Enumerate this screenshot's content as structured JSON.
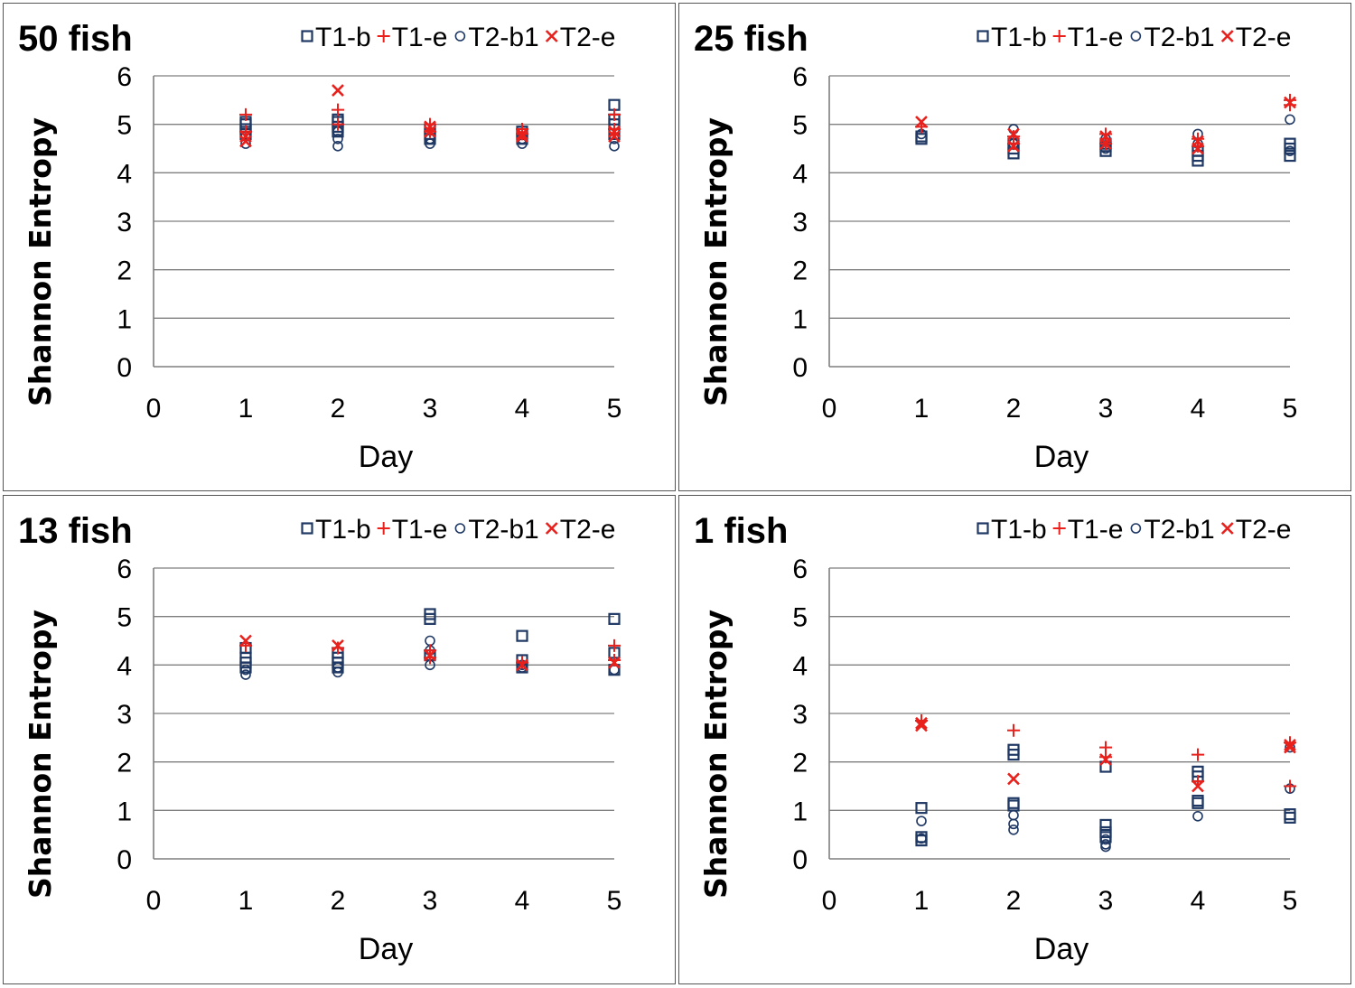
{
  "colors": {
    "T1-b": "#1F3864",
    "T1-e": "#E8211D",
    "T2-b1": "#1F3864",
    "T2-e": "#E8211D",
    "grid": "#7F7F7F"
  },
  "chart_data": [
    {
      "type": "scatter",
      "title": "50 fish",
      "xlabel": "Day",
      "ylabel": "Shannon Entropy",
      "xlim": [
        0,
        5
      ],
      "ylim": [
        0,
        6
      ],
      "xticks": [
        "0",
        "1",
        "2",
        "3",
        "4",
        "5"
      ],
      "yticks": [
        "0",
        "1",
        "2",
        "3",
        "4",
        "5",
        "6"
      ],
      "legend_position": "top-right",
      "series": [
        {
          "name": "T1-b",
          "marker": "square",
          "points": [
            [
              1,
              4.8
            ],
            [
              1,
              4.9
            ],
            [
              1,
              5.0
            ],
            [
              1,
              5.05
            ],
            [
              2,
              4.85
            ],
            [
              2,
              4.95
            ],
            [
              2,
              5.05
            ],
            [
              2,
              5.1
            ],
            [
              3,
              4.7
            ],
            [
              3,
              4.8
            ],
            [
              3,
              4.9
            ],
            [
              4,
              4.7
            ],
            [
              4,
              4.8
            ],
            [
              4,
              4.85
            ],
            [
              5,
              4.8
            ],
            [
              5,
              5.0
            ],
            [
              5,
              5.1
            ],
            [
              5,
              5.4
            ]
          ]
        },
        {
          "name": "T1-e",
          "marker": "plus",
          "points": [
            [
              1,
              5.2
            ],
            [
              1,
              4.85
            ],
            [
              2,
              5.3
            ],
            [
              2,
              5.0
            ],
            [
              3,
              5.0
            ],
            [
              3,
              4.85
            ],
            [
              4,
              4.8
            ],
            [
              4,
              4.9
            ],
            [
              5,
              5.2
            ],
            [
              5,
              4.9
            ]
          ]
        },
        {
          "name": "T2-b1",
          "marker": "circle",
          "points": [
            [
              1,
              4.6
            ],
            [
              1,
              4.75
            ],
            [
              2,
              4.55
            ],
            [
              2,
              4.7
            ],
            [
              2,
              4.85
            ],
            [
              3,
              4.6
            ],
            [
              3,
              4.7
            ],
            [
              4,
              4.6
            ],
            [
              4,
              4.7
            ],
            [
              5,
              4.55
            ],
            [
              5,
              4.7
            ]
          ]
        },
        {
          "name": "T2-e",
          "marker": "x",
          "points": [
            [
              1,
              4.65
            ],
            [
              1,
              4.75
            ],
            [
              2,
              5.7
            ],
            [
              3,
              4.95
            ],
            [
              3,
              4.85
            ],
            [
              4,
              4.8
            ],
            [
              4,
              4.75
            ],
            [
              5,
              4.85
            ],
            [
              5,
              4.75
            ]
          ]
        }
      ]
    },
    {
      "type": "scatter",
      "title": "25 fish",
      "xlabel": "Day",
      "ylabel": "Shannon Entropy",
      "xlim": [
        0,
        5
      ],
      "ylim": [
        0,
        6
      ],
      "xticks": [
        "0",
        "1",
        "2",
        "3",
        "4",
        "5"
      ],
      "yticks": [
        "0",
        "1",
        "2",
        "3",
        "4",
        "5",
        "6"
      ],
      "legend_position": "top-right",
      "series": [
        {
          "name": "T1-b",
          "marker": "square",
          "points": [
            [
              1,
              4.7
            ],
            [
              1,
              4.75
            ],
            [
              2,
              4.4
            ],
            [
              2,
              4.5
            ],
            [
              2,
              4.6
            ],
            [
              3,
              4.45
            ],
            [
              3,
              4.55
            ],
            [
              3,
              4.6
            ],
            [
              4,
              4.25
            ],
            [
              4,
              4.35
            ],
            [
              4,
              4.45
            ],
            [
              5,
              4.35
            ],
            [
              5,
              4.5
            ],
            [
              5,
              4.6
            ]
          ]
        },
        {
          "name": "T1-e",
          "marker": "plus",
          "points": [
            [
              1,
              4.95
            ],
            [
              2,
              4.6
            ],
            [
              2,
              4.75
            ],
            [
              3,
              4.6
            ],
            [
              3,
              4.8
            ],
            [
              4,
              4.55
            ],
            [
              4,
              4.7
            ],
            [
              5,
              5.5
            ],
            [
              5,
              5.4
            ]
          ]
        },
        {
          "name": "T2-b1",
          "marker": "circle",
          "points": [
            [
              1,
              4.8
            ],
            [
              2,
              4.9
            ],
            [
              2,
              4.6
            ],
            [
              3,
              4.7
            ],
            [
              3,
              4.5
            ],
            [
              4,
              4.8
            ],
            [
              4,
              4.6
            ],
            [
              5,
              5.1
            ],
            [
              5,
              4.45
            ]
          ]
        },
        {
          "name": "T2-e",
          "marker": "x",
          "points": [
            [
              1,
              5.05
            ],
            [
              2,
              4.8
            ],
            [
              2,
              4.55
            ],
            [
              3,
              4.75
            ],
            [
              3,
              4.6
            ],
            [
              4,
              4.65
            ],
            [
              4,
              4.5
            ],
            [
              5,
              5.45
            ]
          ]
        }
      ]
    },
    {
      "type": "scatter",
      "title": "13 fish",
      "xlabel": "Day",
      "ylabel": "Shannon Entropy",
      "xlim": [
        0,
        5
      ],
      "ylim": [
        0,
        6
      ],
      "xticks": [
        "0",
        "1",
        "2",
        "3",
        "4",
        "5"
      ],
      "yticks": [
        "0",
        "1",
        "2",
        "3",
        "4",
        "5",
        "6"
      ],
      "legend_position": "top-right",
      "series": [
        {
          "name": "T1-b",
          "marker": "square",
          "points": [
            [
              1,
              3.95
            ],
            [
              1,
              4.05
            ],
            [
              1,
              4.15
            ],
            [
              1,
              4.35
            ],
            [
              2,
              3.95
            ],
            [
              2,
              4.05
            ],
            [
              2,
              4.15
            ],
            [
              2,
              4.25
            ],
            [
              3,
              4.95
            ],
            [
              3,
              5.05
            ],
            [
              3,
              4.2
            ],
            [
              4,
              4.6
            ],
            [
              4,
              4.1
            ],
            [
              4,
              3.95
            ],
            [
              5,
              4.95
            ],
            [
              5,
              4.25
            ],
            [
              5,
              3.9
            ]
          ]
        },
        {
          "name": "T1-e",
          "marker": "plus",
          "points": [
            [
              1,
              4.4
            ],
            [
              2,
              4.35
            ],
            [
              3,
              4.3
            ],
            [
              3,
              4.15
            ],
            [
              4,
              4.05
            ],
            [
              5,
              4.4
            ],
            [
              5,
              4.1
            ]
          ]
        },
        {
          "name": "T2-b1",
          "marker": "circle",
          "points": [
            [
              1,
              3.8
            ],
            [
              1,
              3.9
            ],
            [
              2,
              3.85
            ],
            [
              2,
              3.95
            ],
            [
              3,
              4.5
            ],
            [
              3,
              4.3
            ],
            [
              3,
              4.0
            ],
            [
              4,
              3.95
            ],
            [
              4,
              4.0
            ],
            [
              5,
              3.9
            ]
          ]
        },
        {
          "name": "T2-e",
          "marker": "x",
          "points": [
            [
              1,
              4.5
            ],
            [
              2,
              4.4
            ],
            [
              3,
              4.2
            ],
            [
              4,
              4.0
            ],
            [
              5,
              4.05
            ]
          ]
        }
      ]
    },
    {
      "type": "scatter",
      "title": "1 fish",
      "xlabel": "Day",
      "ylabel": "Shannon Entropy",
      "xlim": [
        0,
        5
      ],
      "ylim": [
        0,
        6
      ],
      "xticks": [
        "0",
        "1",
        "2",
        "3",
        "4",
        "5"
      ],
      "yticks": [
        "0",
        "1",
        "2",
        "3",
        "4",
        "5",
        "6"
      ],
      "legend_position": "top-right",
      "series": [
        {
          "name": "T1-b",
          "marker": "square",
          "points": [
            [
              1,
              1.05
            ],
            [
              1,
              0.45
            ],
            [
              1,
              0.38
            ],
            [
              2,
              2.25
            ],
            [
              2,
              2.15
            ],
            [
              2,
              1.15
            ],
            [
              2,
              1.1
            ],
            [
              3,
              1.9
            ],
            [
              3,
              0.7
            ],
            [
              3,
              0.55
            ],
            [
              3,
              0.45
            ],
            [
              4,
              1.8
            ],
            [
              4,
              1.7
            ],
            [
              4,
              1.2
            ],
            [
              4,
              1.15
            ],
            [
              5,
              0.92
            ],
            [
              5,
              0.85
            ]
          ]
        },
        {
          "name": "T1-e",
          "marker": "plus",
          "points": [
            [
              1,
              2.85
            ],
            [
              2,
              2.65
            ],
            [
              3,
              2.3
            ],
            [
              3,
              2.1
            ],
            [
              4,
              2.15
            ],
            [
              4,
              1.6
            ],
            [
              5,
              2.4
            ],
            [
              5,
              1.5
            ]
          ]
        },
        {
          "name": "T2-b1",
          "marker": "circle",
          "points": [
            [
              1,
              0.78
            ],
            [
              1,
              0.42
            ],
            [
              2,
              0.9
            ],
            [
              2,
              0.72
            ],
            [
              2,
              0.6
            ],
            [
              3,
              0.4
            ],
            [
              3,
              0.3
            ],
            [
              3,
              0.25
            ],
            [
              4,
              0.88
            ],
            [
              5,
              1.45
            ],
            [
              5,
              2.3
            ]
          ]
        },
        {
          "name": "T2-e",
          "marker": "x",
          "points": [
            [
              1,
              2.8
            ],
            [
              1,
              2.75
            ],
            [
              2,
              1.65
            ],
            [
              3,
              2.05
            ],
            [
              4,
              1.5
            ],
            [
              5,
              2.35
            ],
            [
              5,
              2.3
            ]
          ]
        }
      ]
    }
  ]
}
